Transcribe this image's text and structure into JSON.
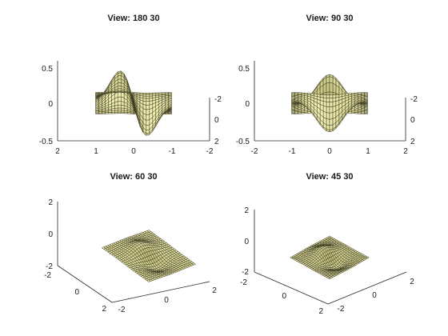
{
  "colors": {
    "surface": "#f4f1b6",
    "edge": "#38381e",
    "shadow": "#8c8a3c"
  },
  "chart_data": [
    {
      "type": "surface",
      "title": "View: 180 30",
      "function": "z = x * exp(-x^2 - y^2)",
      "xlim": [
        -2,
        2
      ],
      "ylim": [
        -2,
        2
      ],
      "zlim": [
        -0.5,
        0.5
      ],
      "view": {
        "azimuth": 180,
        "elevation": 30
      },
      "horizontal_ticks": [
        "2",
        "1",
        "0",
        "-1",
        "-2"
      ],
      "vertical_ticks": [
        "-0.5",
        "0",
        "0.5"
      ],
      "depth_ticks": [
        "-2",
        "0",
        "2"
      ]
    },
    {
      "type": "surface",
      "title": "View: 90 30",
      "function": "z = x * exp(-x^2 - y^2)",
      "xlim": [
        -2,
        2
      ],
      "ylim": [
        -2,
        2
      ],
      "zlim": [
        -0.5,
        0.5
      ],
      "view": {
        "azimuth": 90,
        "elevation": 30
      },
      "horizontal_ticks": [
        "-2",
        "-1",
        "0",
        "1",
        "2"
      ],
      "vertical_ticks": [
        "-0.5",
        "0",
        "0.5"
      ],
      "depth_ticks": [
        "-2",
        "0",
        "2"
      ]
    },
    {
      "type": "surface",
      "title": "View: 60 30",
      "function": "z = x * exp(-x^2 - y^2)",
      "xlim": [
        -2,
        2
      ],
      "ylim": [
        -2,
        2
      ],
      "zlim": [
        -2,
        2
      ],
      "view": {
        "azimuth": 60,
        "elevation": 30
      },
      "vertical_ticks": [
        "-2",
        "0",
        "2"
      ],
      "left_ticks": [
        "-2",
        "0",
        "2"
      ],
      "right_ticks": [
        "-2",
        "0",
        "2"
      ]
    },
    {
      "type": "surface",
      "title": "View: 45 30",
      "function": "z = x * exp(-x^2 - y^2)",
      "xlim": [
        -2,
        2
      ],
      "ylim": [
        -2,
        2
      ],
      "zlim": [
        -2,
        2
      ],
      "view": {
        "azimuth": 45,
        "elevation": 30
      },
      "vertical_ticks": [
        "-2",
        "0",
        "2"
      ],
      "left_ticks": [
        "-2",
        "0",
        "2"
      ],
      "right_ticks": [
        "-2",
        "0",
        "2"
      ]
    }
  ]
}
